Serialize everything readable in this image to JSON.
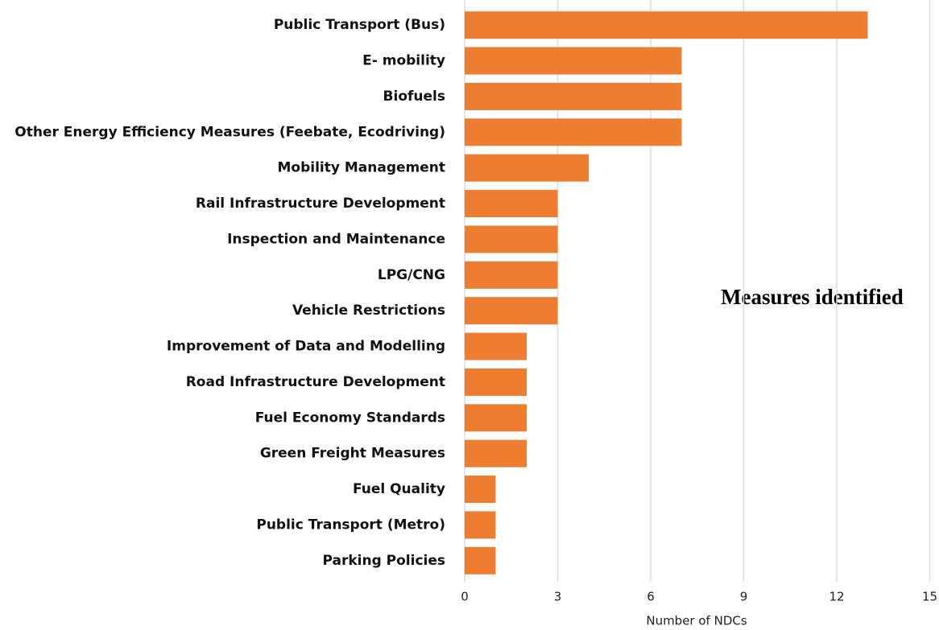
{
  "chart_data": {
    "type": "hbar",
    "title": "Measures identified",
    "x_label": "Number of NDCs",
    "categories": [
      "Public Transport (Bus)",
      "E- mobility",
      "Biofuels",
      "Other Energy Efficiency Measures (Feebate, Ecodriving)",
      "Mobility Management",
      "Rail Infrastructure Development",
      "Inspection and Maintenance",
      "LPG/CNG",
      "Vehicle Restrictions",
      "Improvement of Data and Modelling",
      "Road Infrastructure Development",
      "Fuel Economy Standards",
      "Green Freight Measures",
      "Fuel Quality",
      "Public Transport (Metro)",
      "Parking Policies"
    ],
    "values": [
      13,
      7,
      7,
      7,
      4,
      3,
      3,
      3,
      3,
      2,
      2,
      2,
      2,
      1,
      1,
      1
    ],
    "color": "#ed7d31",
    "xlim": [
      0,
      15
    ],
    "xticks": [
      0,
      3,
      6,
      9,
      12,
      15
    ],
    "grid": true
  }
}
